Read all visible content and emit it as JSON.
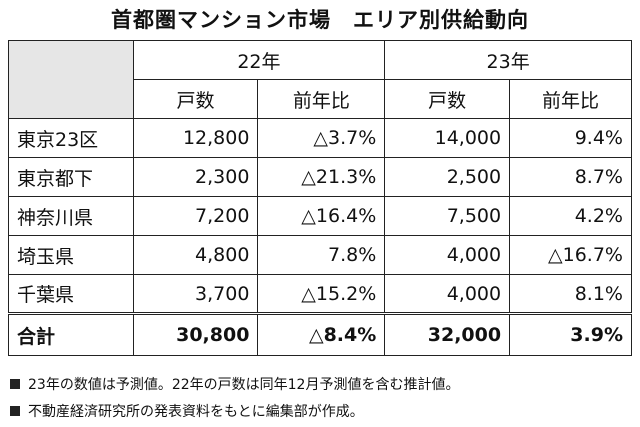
{
  "title": "首都圏マンション市場　エリア別供給動向",
  "table": {
    "years": [
      "22年",
      "23年"
    ],
    "columns": [
      "戸数",
      "前年比",
      "戸数",
      "前年比"
    ],
    "rows": [
      [
        "東京23区",
        "12,800",
        "△3.7%",
        "14,000",
        "9.4%"
      ],
      [
        "東京都下",
        "2,300",
        "△21.3%",
        "2,500",
        "8.7%"
      ],
      [
        "神奈川県",
        "7,200",
        "△16.4%",
        "7,500",
        "4.2%"
      ],
      [
        "埼玉県",
        "4,800",
        "7.8%",
        "4,000",
        "△16.7%"
      ],
      [
        "千葉県",
        "3,700",
        "△15.2%",
        "4,000",
        "8.1%"
      ]
    ],
    "total": [
      "合計",
      "30,800",
      "△8.4%",
      "32,000",
      "3.9%"
    ]
  },
  "notes": [
    "23年の数値は予測値。22年の戸数は同年12月予測値を含む推計値。",
    "不動産経済研究所の発表資料をもとに編集部が作成。"
  ]
}
